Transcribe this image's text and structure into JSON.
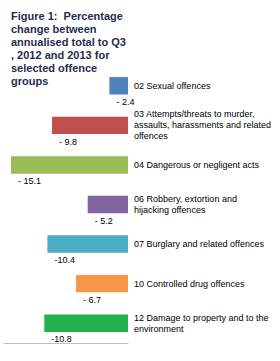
{
  "chart_data": {
    "type": "bar",
    "orientation": "horizontal",
    "title": "Figure 1:  Percentage change between annualised total to Q3, 2012 and 2013 for selected offence groups",
    "categories": [
      "02 Sexual offences",
      "03 Attempts/threats to murder, assaults, harassments and related offences",
      "04 Dangerous or negligent acts",
      "06 Robbery, extortion and hijacking offences",
      "07 Burglary and related offences",
      "10 Controlled drug offences",
      "12 Damage to property and to the environment"
    ],
    "values": [
      -2.4,
      -9.8,
      -15.1,
      -5.2,
      -10.4,
      -6.7,
      -10.8
    ],
    "value_labels": [
      "- 2.4",
      "- 9.8",
      "- 15.1",
      "- 5.2",
      "-10.4",
      "- 6.7",
      "-10.8"
    ],
    "colors": [
      "#4f81bd",
      "#c0504d",
      "#9bbb59",
      "#8064a2",
      "#4bacc6",
      "#f79646",
      "#23b14d"
    ],
    "xlim": [
      -16,
      0
    ],
    "xticks": [],
    "grid": false,
    "data_labels": true,
    "tick_labels": false
  }
}
